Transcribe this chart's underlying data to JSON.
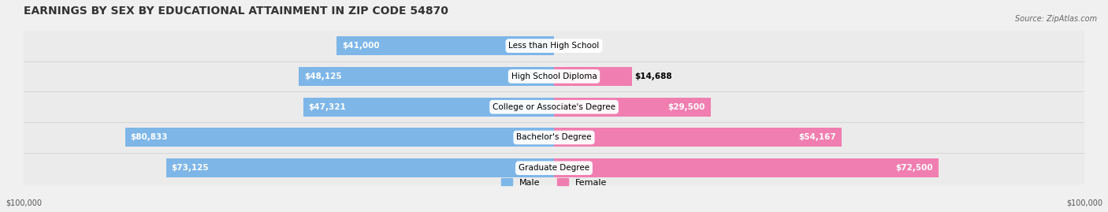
{
  "title": "EARNINGS BY SEX BY EDUCATIONAL ATTAINMENT IN ZIP CODE 54870",
  "source": "Source: ZipAtlas.com",
  "categories": [
    "Less than High School",
    "High School Diploma",
    "College or Associate's Degree",
    "Bachelor's Degree",
    "Graduate Degree"
  ],
  "male_values": [
    41000,
    48125,
    47321,
    80833,
    73125
  ],
  "female_values": [
    0,
    14688,
    29500,
    54167,
    72500
  ],
  "male_color": "#7EB6E8",
  "female_color": "#F07EB0",
  "male_label_color": "#000000",
  "female_label_color": "#000000",
  "male_label_color_inside": "#ffffff",
  "female_label_color_inside": "#ffffff",
  "max_value": 100000,
  "bg_color": "#f0f0f0",
  "bar_bg_color": "#e8e8e8",
  "row_bg_light": "#f5f5f5",
  "row_bg_dark": "#e8e8e8",
  "title_fontsize": 10,
  "label_fontsize": 7.5,
  "tick_fontsize": 7,
  "legend_fontsize": 8
}
